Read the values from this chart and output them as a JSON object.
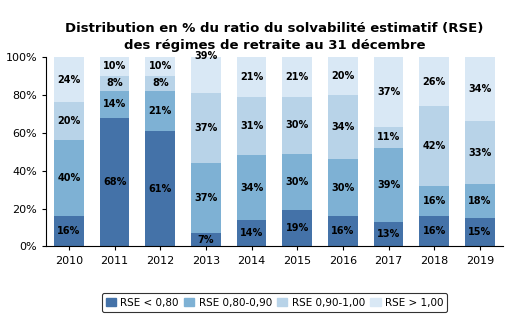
{
  "title": "Distribution en % du ratio du solvabilité estimatif (RSE)\ndes régimes de retraite au 31 décembre",
  "years": [
    "2010",
    "2011",
    "2012",
    "2013",
    "2014",
    "2015",
    "2016",
    "2017",
    "2018",
    "2019"
  ],
  "series": {
    "RSE < 0,80": [
      16,
      68,
      61,
      7,
      14,
      19,
      16,
      13,
      16,
      15
    ],
    "RSE 0,80-0,90": [
      40,
      14,
      21,
      37,
      34,
      30,
      30,
      39,
      16,
      18
    ],
    "RSE 0,90-1,00": [
      20,
      8,
      8,
      37,
      31,
      30,
      34,
      11,
      42,
      33
    ],
    "RSE > 1,00": [
      24,
      10,
      10,
      39,
      21,
      21,
      20,
      37,
      26,
      34
    ]
  },
  "colors": [
    "#4472A8",
    "#7EB1D4",
    "#B8D3E8",
    "#D9E8F5"
  ],
  "legend_labels": [
    "RSE < 0,80",
    "RSE 0,80-0,90",
    "RSE 0,90-1,00",
    "RSE > 1,00"
  ],
  "yticks": [
    0,
    20,
    40,
    60,
    80,
    100
  ],
  "ytick_labels": [
    "0%",
    "20%",
    "40%",
    "60%",
    "80%",
    "100%"
  ],
  "background_color": "#FFFFFF",
  "title_fontsize": 9.5,
  "tick_fontsize": 8,
  "label_fontsize": 7,
  "legend_fontsize": 7.5
}
